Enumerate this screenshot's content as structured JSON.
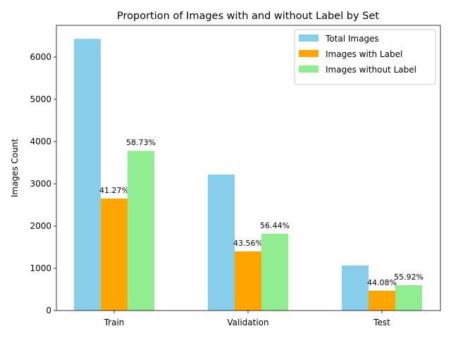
{
  "chart_data": {
    "type": "bar",
    "title": "Proportion of Images with and without Label by Set",
    "xlabel": "",
    "ylabel": "Images Count",
    "categories": [
      "Train",
      "Validation",
      "Test"
    ],
    "ylim": [
      0,
      6750
    ],
    "yticks": [
      0,
      1000,
      2000,
      3000,
      4000,
      5000,
      6000
    ],
    "grid": false,
    "legend_position": "top-right",
    "series": [
      {
        "name": "Total Images",
        "color": "#87CEEB",
        "values": [
          6430,
          3220,
          1070
        ],
        "labels": [
          "",
          "",
          ""
        ]
      },
      {
        "name": "Images with Label",
        "color": "#FFA500",
        "values": [
          2650,
          1400,
          470
        ],
        "labels": [
          "41.27%",
          "43.56%",
          "44.08%"
        ]
      },
      {
        "name": "Images without Label",
        "color": "#90EE90",
        "values": [
          3780,
          1820,
          600
        ],
        "labels": [
          "58.73%",
          "56.44%",
          "55.92%"
        ]
      }
    ]
  }
}
